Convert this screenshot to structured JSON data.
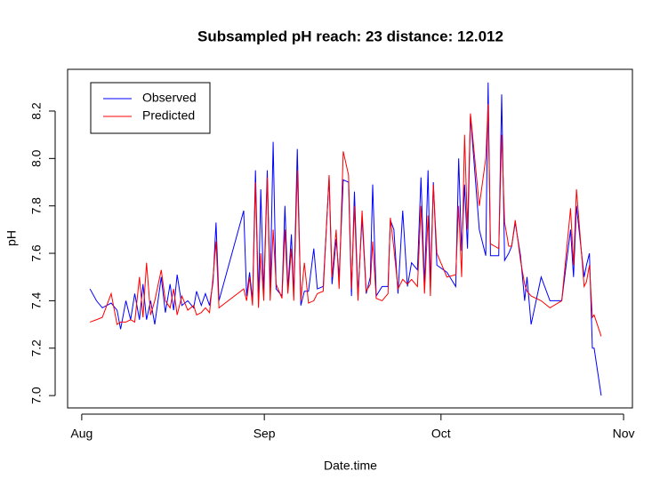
{
  "chart_data": {
    "type": "line",
    "title": "Subsampled pH  reach: 23  distance: 12.012",
    "x_label": "Date.time",
    "y_label": "pH",
    "x": [
      1.4,
      2.5,
      3.5,
      5,
      6,
      6.6,
      7.5,
      8.3,
      9,
      9.8,
      10.4,
      11,
      11.7,
      12.4,
      13.5,
      14.2,
      15,
      15.6,
      16.2,
      17,
      18,
      19,
      19.5,
      20.3,
      21,
      21.7,
      22.3,
      22.8,
      23.3,
      27.5,
      28,
      28.5,
      29,
      29.5,
      30,
      30.4,
      30.9,
      31.5,
      32,
      32.5,
      33,
      34,
      34.5,
      35,
      35.6,
      36,
      36.6,
      37.2,
      37.8,
      38.5,
      39.4,
      40,
      41,
      42,
      42.5,
      43.2,
      43.7,
      44.4,
      45.3,
      45.8,
      46.3,
      46.9,
      47.6,
      48.3,
      49,
      49.4,
      50,
      51,
      52,
      52.4,
      53,
      53.7,
      54.5,
      55.3,
      56,
      57,
      57.6,
      58.2,
      58.8,
      59.2,
      59.7,
      60.3,
      62,
      63.5,
      64,
      64.5,
      65,
      65.5,
      66,
      67.5,
      68.6,
      69,
      69.4,
      70.8,
      71.3,
      71.8,
      72.5,
      73,
      73.6,
      74.5,
      75.2,
      75.6,
      76.3,
      78,
      79.5,
      81.5,
      83,
      83.5,
      84,
      85.3,
      85.7,
      86.2,
      86.7,
      87,
      88.2
    ],
    "series": [
      {
        "name": "Observed",
        "color": "#0000ff",
        "values": [
          7.45,
          7.4,
          7.37,
          7.39,
          7.36,
          7.28,
          7.4,
          7.32,
          7.43,
          7.32,
          7.47,
          7.32,
          7.4,
          7.3,
          7.5,
          7.35,
          7.47,
          7.36,
          7.51,
          7.38,
          7.4,
          7.37,
          7.44,
          7.38,
          7.43,
          7.38,
          7.48,
          7.73,
          7.4,
          7.78,
          7.42,
          7.52,
          7.4,
          7.95,
          7.4,
          7.87,
          7.43,
          7.95,
          7.45,
          8.07,
          7.45,
          7.42,
          7.8,
          7.45,
          7.68,
          7.42,
          8.04,
          7.38,
          7.44,
          7.44,
          7.62,
          7.45,
          7.46,
          7.92,
          7.47,
          7.66,
          7.5,
          7.91,
          7.9,
          7.42,
          7.86,
          7.42,
          7.75,
          7.43,
          7.5,
          7.89,
          7.42,
          7.46,
          7.46,
          7.74,
          7.7,
          7.43,
          7.78,
          7.46,
          7.56,
          7.53,
          7.92,
          7.46,
          7.95,
          7.46,
          7.9,
          7.55,
          7.52,
          7.46,
          8.0,
          7.61,
          7.89,
          7.62,
          8.18,
          7.7,
          7.59,
          8.32,
          7.59,
          7.59,
          8.27,
          7.57,
          7.6,
          7.63,
          7.73,
          7.59,
          7.4,
          7.5,
          7.3,
          7.5,
          7.4,
          7.4,
          7.7,
          7.5,
          7.8,
          7.5,
          7.55,
          7.6,
          7.2,
          7.2,
          7.0
        ]
      },
      {
        "name": "Predicted",
        "color": "#ff0000",
        "values": [
          7.31,
          7.32,
          7.33,
          7.43,
          7.3,
          7.31,
          7.31,
          7.32,
          7.31,
          7.5,
          7.33,
          7.56,
          7.34,
          7.4,
          7.53,
          7.4,
          7.37,
          7.45,
          7.34,
          7.42,
          7.36,
          7.38,
          7.34,
          7.35,
          7.37,
          7.35,
          7.5,
          7.65,
          7.37,
          7.45,
          7.4,
          7.5,
          7.38,
          7.9,
          7.37,
          7.6,
          7.4,
          7.92,
          7.4,
          7.7,
          7.47,
          7.41,
          7.7,
          7.43,
          7.62,
          7.4,
          7.95,
          7.4,
          7.56,
          7.39,
          7.4,
          7.43,
          7.44,
          7.93,
          7.5,
          7.7,
          7.45,
          8.03,
          7.93,
          7.45,
          7.8,
          7.4,
          7.78,
          7.44,
          7.47,
          7.65,
          7.41,
          7.4,
          7.43,
          7.75,
          7.62,
          7.45,
          7.49,
          7.47,
          7.49,
          7.46,
          7.8,
          7.43,
          7.76,
          7.42,
          7.89,
          7.6,
          7.5,
          7.51,
          7.8,
          7.5,
          8.1,
          7.7,
          8.19,
          7.8,
          8.0,
          8.23,
          7.64,
          7.62,
          8.1,
          7.73,
          7.63,
          7.63,
          7.74,
          7.57,
          7.47,
          7.44,
          7.42,
          7.4,
          7.37,
          7.4,
          7.79,
          7.55,
          7.87,
          7.46,
          7.48,
          7.55,
          7.33,
          7.34,
          7.25
        ]
      }
    ],
    "xlim": [
      -2.4,
      93.5
    ],
    "xticks": [
      {
        "value": 0,
        "label": "Aug"
      },
      {
        "value": 31,
        "label": "Sep"
      },
      {
        "value": 61,
        "label": "Oct"
      },
      {
        "value": 92,
        "label": "Nov"
      }
    ],
    "ylim": [
      6.948,
      8.376
    ],
    "yticks": [
      {
        "value": 7.0,
        "label": "7.0"
      },
      {
        "value": 7.2,
        "label": "7.2"
      },
      {
        "value": 7.4,
        "label": "7.4"
      },
      {
        "value": 7.6,
        "label": "7.6"
      },
      {
        "value": 7.8,
        "label": "7.8"
      },
      {
        "value": 8.0,
        "label": "8.0"
      },
      {
        "value": 8.2,
        "label": "8.2"
      }
    ],
    "legend": "top-left",
    "grid": false
  }
}
